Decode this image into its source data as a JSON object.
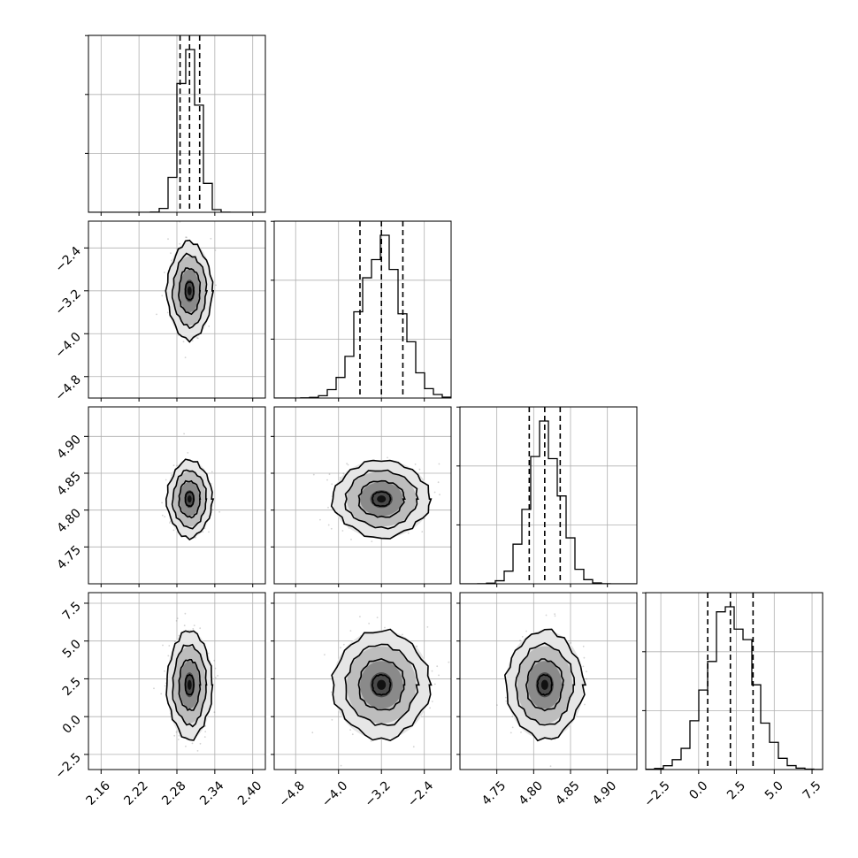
{
  "chart_data": {
    "type": "corner",
    "parameters": 4,
    "grid": true,
    "colors": {
      "line": "#000000",
      "grid": "#b0b0b0",
      "points": "#808080",
      "background": "#ffffff"
    },
    "params": [
      {
        "index": 0,
        "range": [
          2.14,
          2.42
        ],
        "ticks": [
          2.16,
          2.22,
          2.28,
          2.34,
          2.4
        ],
        "tick_labels": [
          "2.16",
          "2.22",
          "2.28",
          "2.34",
          "2.40"
        ],
        "mean": 2.3,
        "sigma": 0.015,
        "quantiles": [
          2.285,
          2.3,
          2.316
        ]
      },
      {
        "index": 1,
        "range": [
          -5.2,
          -1.9
        ],
        "ticks": [
          -4.8,
          -4.0,
          -3.2,
          -2.4
        ],
        "tick_labels": [
          "−4.8",
          "−4.0",
          "−3.2",
          "−2.4"
        ],
        "mean": -3.2,
        "sigma": 0.38,
        "quantiles": [
          -3.6,
          -3.2,
          -2.8
        ]
      },
      {
        "index": 2,
        "range": [
          4.7,
          4.94
        ],
        "ticks": [
          4.75,
          4.8,
          4.85,
          4.9
        ],
        "tick_labels": [
          "4.75",
          "4.80",
          "4.85",
          "4.90"
        ],
        "mean": 4.815,
        "sigma": 0.022,
        "quantiles": [
          4.794,
          4.815,
          4.836
        ]
      },
      {
        "index": 3,
        "range": [
          -3.5,
          8.2
        ],
        "ticks": [
          -2.5,
          0.0,
          2.5,
          5.0,
          7.5
        ],
        "tick_labels": [
          "−2.5",
          "0.0",
          "2.5",
          "5.0",
          "7.5"
        ],
        "mean": 2.1,
        "sigma": 1.5,
        "quantiles": [
          0.6,
          2.1,
          3.6
        ]
      }
    ]
  }
}
